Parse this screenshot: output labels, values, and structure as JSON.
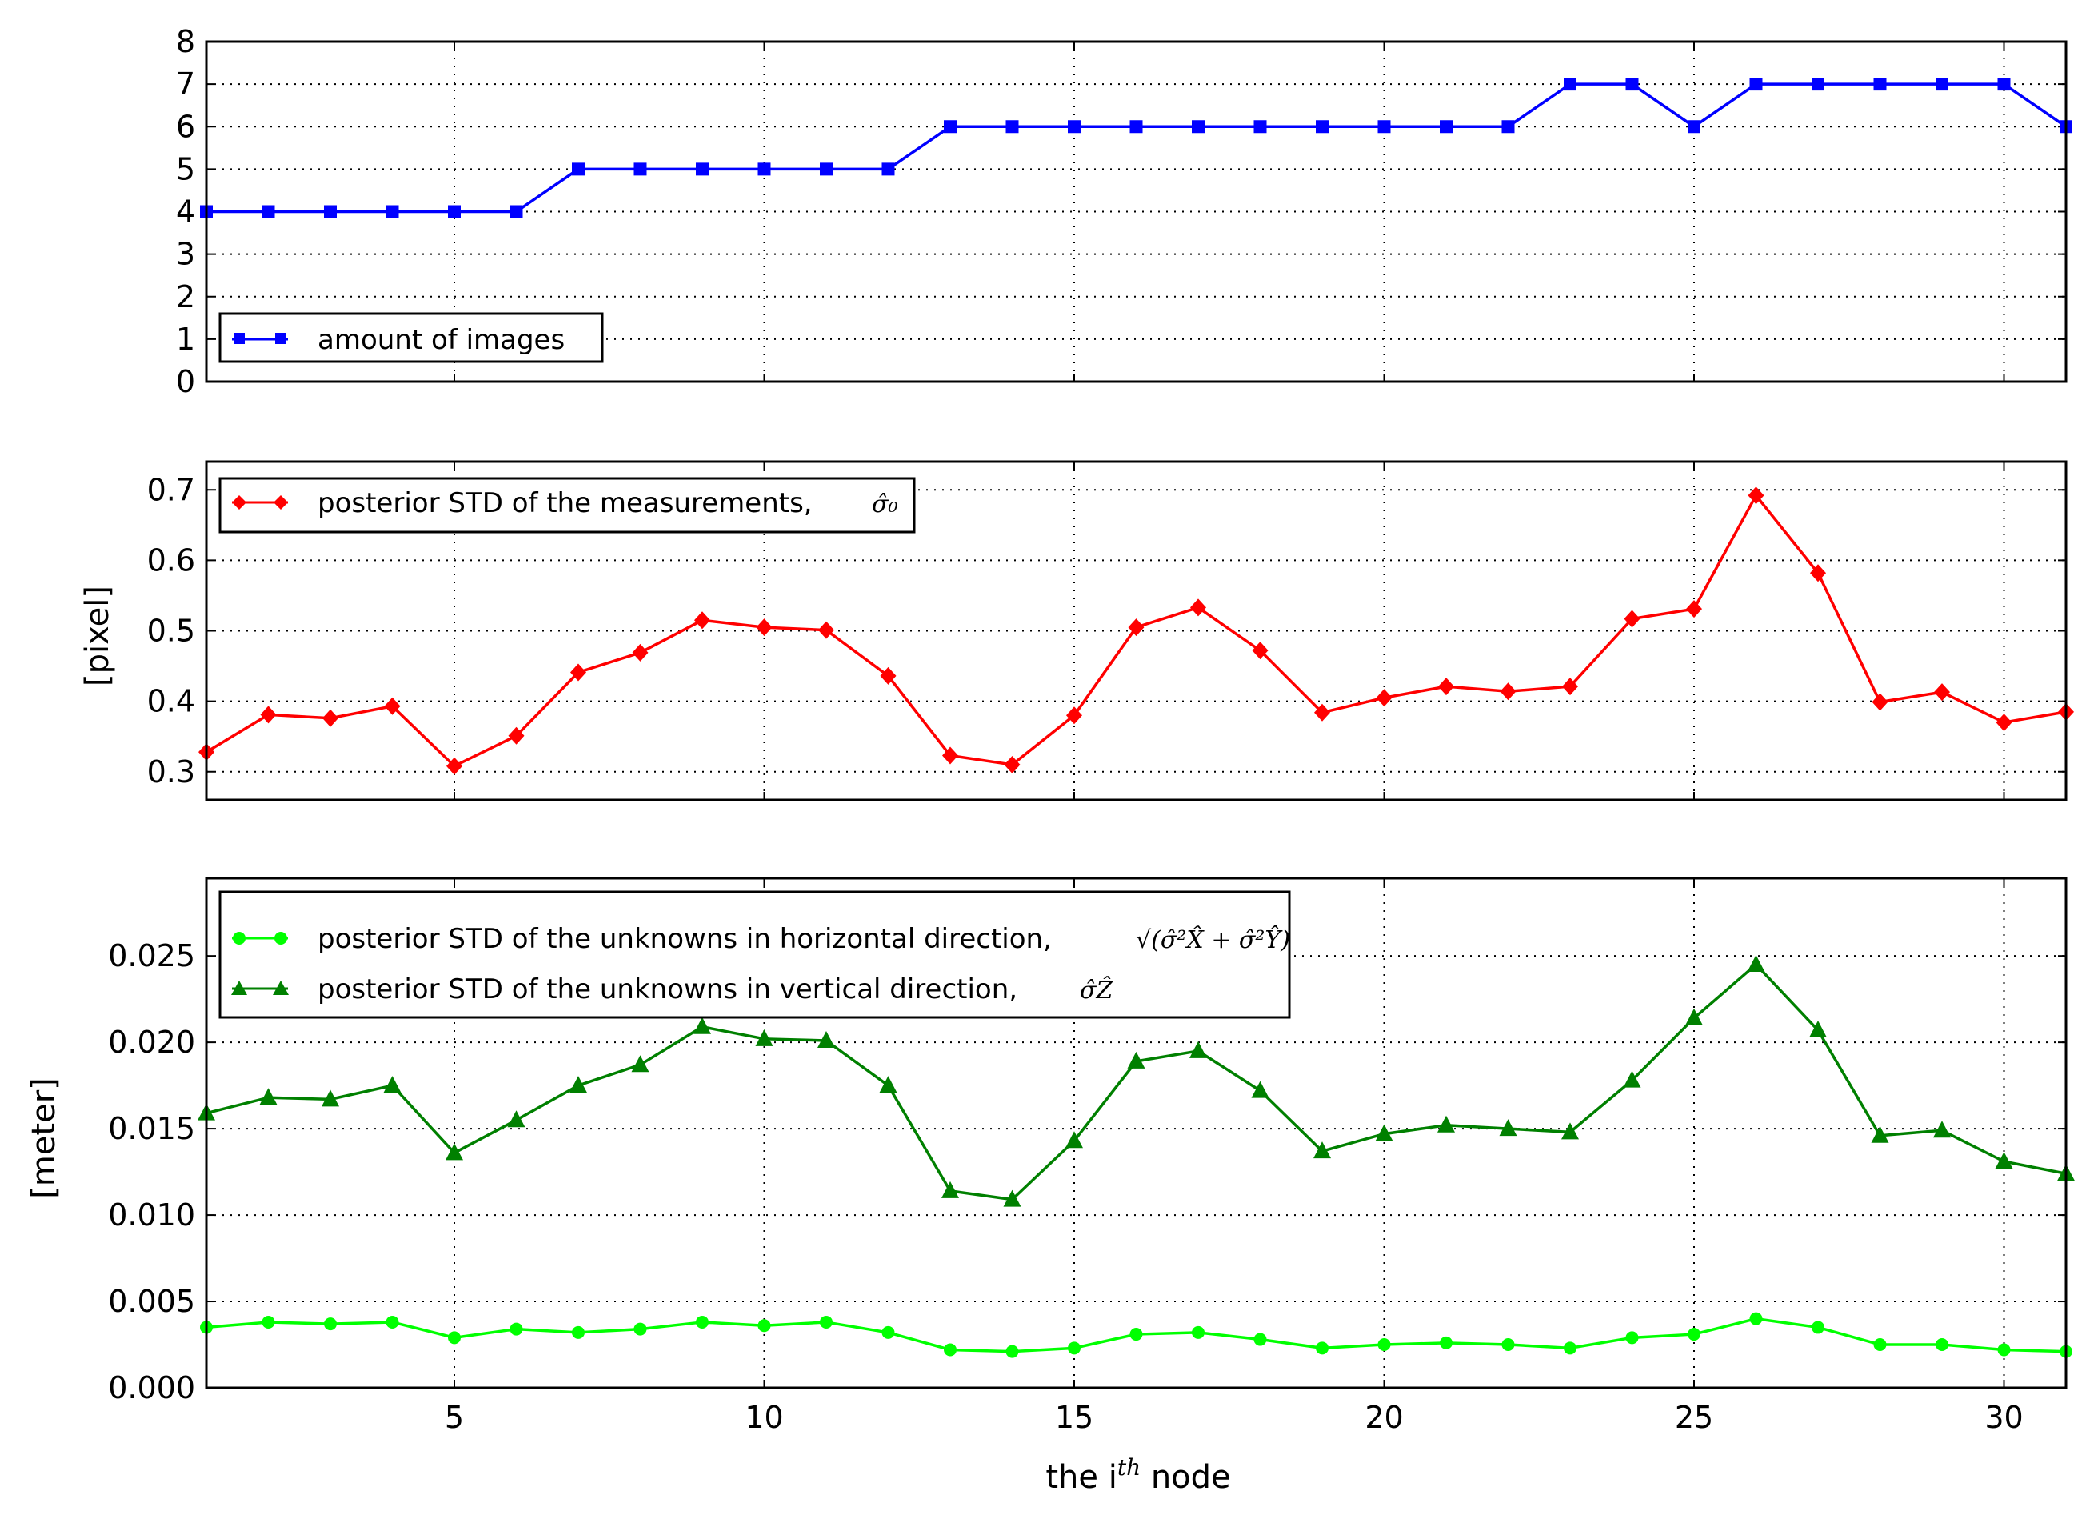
{
  "chart_data": [
    {
      "type": "line",
      "x": [
        1,
        2,
        3,
        4,
        5,
        6,
        7,
        8,
        9,
        10,
        11,
        12,
        13,
        14,
        15,
        16,
        17,
        18,
        19,
        20,
        21,
        22,
        23,
        24,
        25,
        26,
        27,
        28,
        29,
        30,
        31
      ],
      "xlim": [
        1,
        31
      ],
      "ylim": [
        0,
        8
      ],
      "yticks": [
        "0",
        "1",
        "2",
        "3",
        "4",
        "5",
        "6",
        "7",
        "8"
      ],
      "ytick_values": [
        0,
        1,
        2,
        3,
        4,
        5,
        6,
        7,
        8
      ],
      "ylabel": "",
      "grid": true,
      "legend_position": "lower-left",
      "series": [
        {
          "name": "amount of images",
          "color": "#0000ff",
          "marker": "square",
          "values": [
            4,
            4,
            4,
            4,
            4,
            4,
            5,
            5,
            5,
            5,
            5,
            5,
            6,
            6,
            6,
            6,
            6,
            6,
            6,
            6,
            6,
            6,
            7,
            7,
            6,
            7,
            7,
            7,
            7,
            7,
            6
          ]
        }
      ]
    },
    {
      "type": "line",
      "x": [
        1,
        2,
        3,
        4,
        5,
        6,
        7,
        8,
        9,
        10,
        11,
        12,
        13,
        14,
        15,
        16,
        17,
        18,
        19,
        20,
        21,
        22,
        23,
        24,
        25,
        26,
        27,
        28,
        29,
        30,
        31
      ],
      "xlim": [
        1,
        31
      ],
      "ylim": [
        0.26,
        0.74
      ],
      "yticks": [
        "0.3",
        "0.4",
        "0.5",
        "0.6",
        "0.7"
      ],
      "ytick_values": [
        0.3,
        0.4,
        0.5,
        0.6,
        0.7
      ],
      "ylabel": "[pixel]",
      "grid": true,
      "legend_position": "top-left",
      "series": [
        {
          "name": "posterior STD of the measurements,",
          "math": "σ̂₀",
          "color": "#ff0000",
          "marker": "diamond",
          "values": [
            0.328,
            0.381,
            0.376,
            0.393,
            0.308,
            0.351,
            0.441,
            0.469,
            0.515,
            0.505,
            0.501,
            0.436,
            0.323,
            0.31,
            0.38,
            0.505,
            0.533,
            0.472,
            0.384,
            0.405,
            0.421,
            0.414,
            0.421,
            0.517,
            0.531,
            0.692,
            0.582,
            0.399,
            0.413,
            0.37,
            0.385
          ]
        }
      ]
    },
    {
      "type": "line",
      "x": [
        1,
        2,
        3,
        4,
        5,
        6,
        7,
        8,
        9,
        10,
        11,
        12,
        13,
        14,
        15,
        16,
        17,
        18,
        19,
        20,
        21,
        22,
        23,
        24,
        25,
        26,
        27,
        28,
        29,
        30,
        31
      ],
      "xlim": [
        1,
        31
      ],
      "ylim": [
        0.0,
        0.0295
      ],
      "yticks": [
        "0.000",
        "0.005",
        "0.010",
        "0.015",
        "0.020",
        "0.025"
      ],
      "ytick_values": [
        0.0,
        0.005,
        0.01,
        0.015,
        0.02,
        0.025
      ],
      "xticks": [
        "5",
        "10",
        "15",
        "20",
        "25",
        "30"
      ],
      "xtick_values": [
        5,
        10,
        15,
        20,
        25,
        30
      ],
      "ylabel": "[meter]",
      "xlabel_prefix": "the i",
      "xlabel_sup": "th",
      "xlabel_suffix": " node",
      "grid": true,
      "legend_position": "top-left",
      "series": [
        {
          "name": "posterior STD of the unknowns in horizontal direction,",
          "math": "√(σ̂²X̂ + σ̂²Ŷ)",
          "color": "#00ff00",
          "marker": "circle",
          "values": [
            0.0035,
            0.0038,
            0.0037,
            0.0038,
            0.0029,
            0.0034,
            0.0032,
            0.0034,
            0.0038,
            0.0036,
            0.0038,
            0.0032,
            0.0022,
            0.0021,
            0.0023,
            0.0031,
            0.0032,
            0.0028,
            0.0023,
            0.0025,
            0.0026,
            0.0025,
            0.0023,
            0.0029,
            0.0031,
            0.004,
            0.0035,
            0.0025,
            0.0025,
            0.0022,
            0.0021
          ]
        },
        {
          "name": "posterior STD of the unknowns in vertical direction,",
          "math": "σ̂Ẑ",
          "color": "#008000",
          "marker": "triangle",
          "values": [
            0.0159,
            0.0168,
            0.0167,
            0.0175,
            0.0136,
            0.0155,
            0.0175,
            0.0187,
            0.0209,
            0.0202,
            0.0201,
            0.0175,
            0.0114,
            0.0109,
            0.0143,
            0.0189,
            0.0195,
            0.0172,
            0.0137,
            0.0147,
            0.0152,
            0.015,
            0.0148,
            0.0178,
            0.0214,
            0.0245,
            0.0207,
            0.0146,
            0.0149,
            0.0131,
            0.0124
          ]
        }
      ]
    }
  ]
}
